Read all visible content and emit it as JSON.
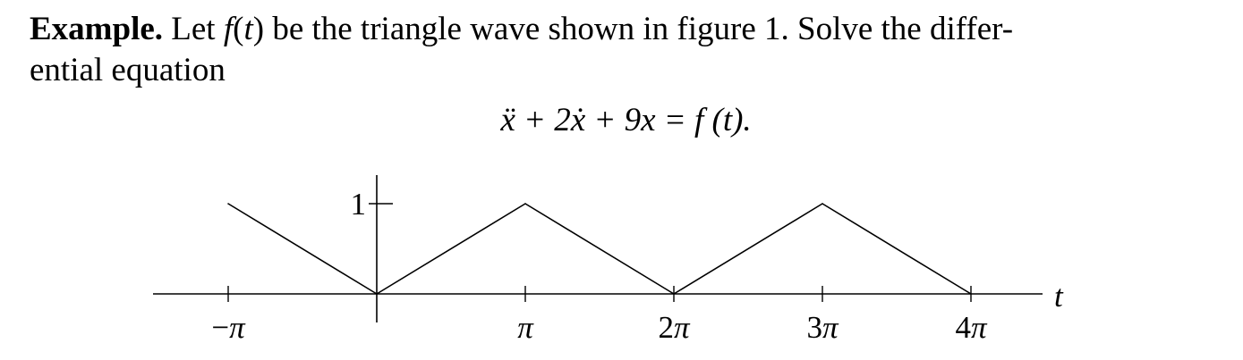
{
  "paragraph": {
    "lead": "Example.",
    "part1": "Let ",
    "fvar": "f",
    "open_paren": "(",
    "tvar": "t",
    "close_paren": ")",
    "part2": " be the triangle wave shown in figure 1. Solve the differ-",
    "line2": "ential equation"
  },
  "equation": {
    "text": "ẍ + 2ẋ + 9x = f (t)."
  },
  "chart_data": {
    "type": "line",
    "x": [
      -3.14159,
      0,
      3.14159,
      6.28319,
      9.42478,
      12.56637
    ],
    "y": [
      1,
      0,
      1,
      0,
      1,
      0
    ],
    "xlabel": "t",
    "ylabel": "",
    "x_ticks": [
      "−π",
      "π",
      "2π",
      "3π",
      "4π"
    ],
    "x_tick_values": [
      -3.14159,
      3.14159,
      6.28319,
      9.42478,
      12.56637
    ],
    "y_ticks": [
      "1"
    ],
    "y_tick_values": [
      1
    ],
    "xlim": [
      -4.0,
      14.5
    ],
    "ylim": [
      -0.3,
      1.3
    ],
    "grid": false
  }
}
